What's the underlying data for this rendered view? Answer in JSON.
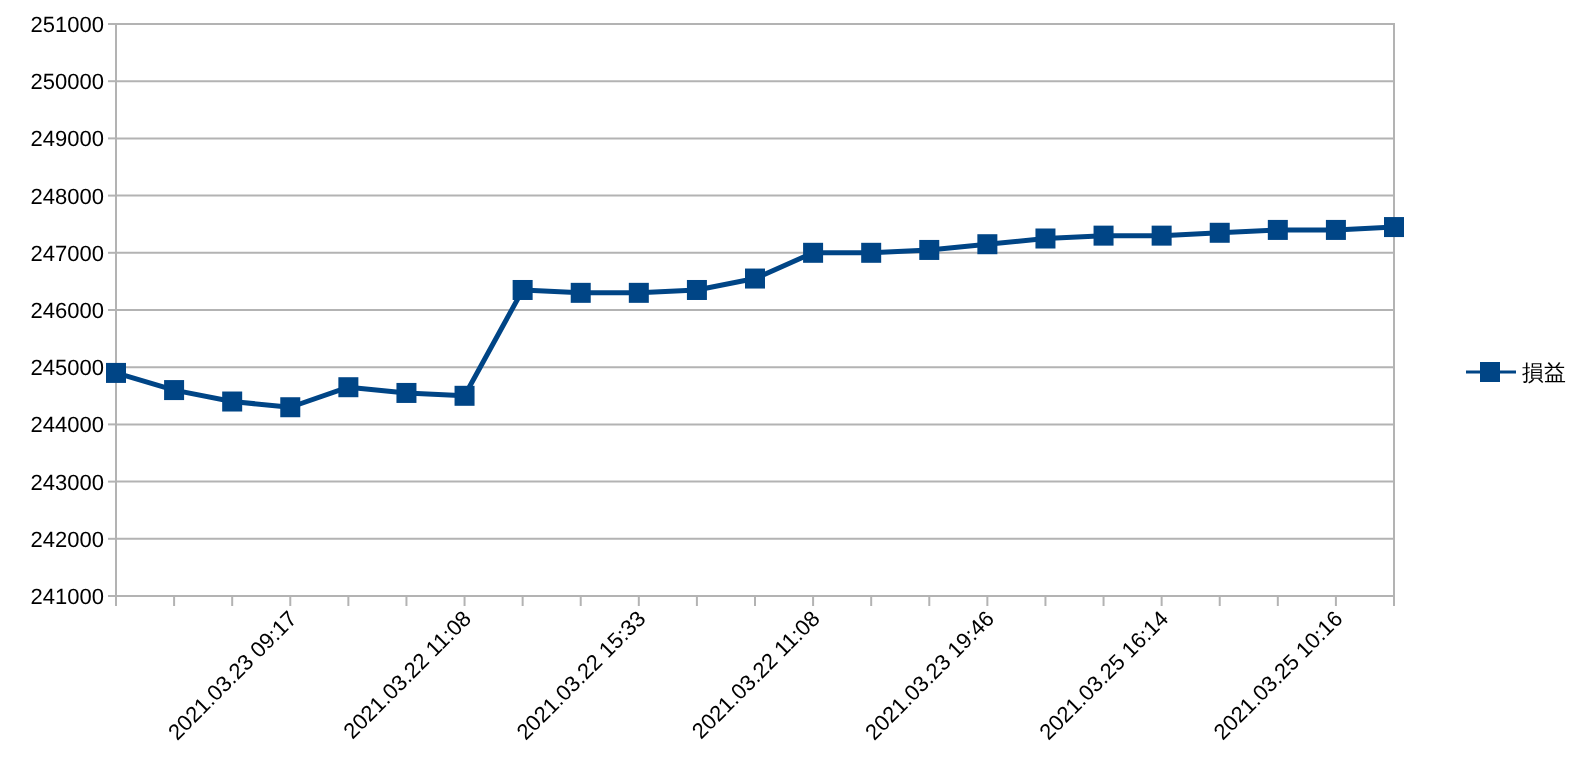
{
  "chart_data": {
    "type": "line",
    "categories": [
      null,
      null,
      null,
      "2021.03.23 09:17",
      null,
      null,
      "2021.03.22 11:08",
      null,
      null,
      "2021.03.22 15:33",
      null,
      null,
      "2021.03.22 11:08",
      null,
      null,
      "2021.03.23 19:46",
      null,
      null,
      "2021.03.25 16:14",
      null,
      null,
      "2021.03.25 10:16",
      null
    ],
    "series": [
      {
        "name": "損益",
        "color": "#004586",
        "values": [
          244900,
          244600,
          244400,
          244300,
          244650,
          244550,
          244500,
          246350,
          246300,
          246300,
          246350,
          246550,
          247000,
          247000,
          247050,
          247150,
          247250,
          247300,
          247300,
          247350,
          247400,
          247400,
          247450
        ]
      }
    ],
    "ylim": [
      241000,
      251000
    ],
    "yticks": [
      241000,
      242000,
      243000,
      244000,
      245000,
      246000,
      247000,
      248000,
      249000,
      250000,
      251000
    ],
    "grid": "y",
    "legend": "right",
    "marker": "square",
    "line_style": "solid"
  }
}
